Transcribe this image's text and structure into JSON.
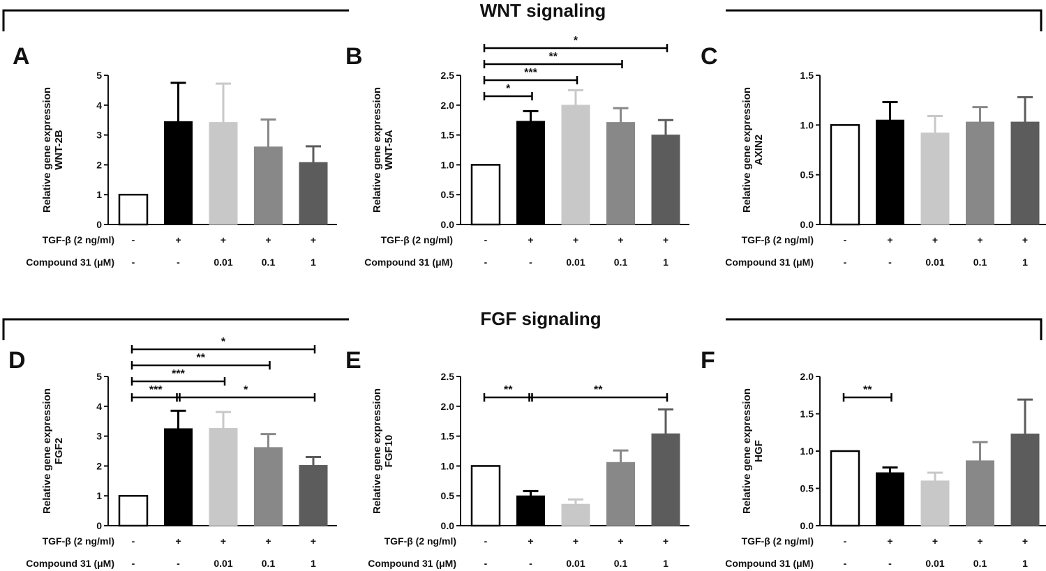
{
  "sections": [
    {
      "title": "WNT signaling"
    },
    {
      "title": "FGF signaling"
    }
  ],
  "row_labels": {
    "tgf": "TGF-β (2 ng/ml)",
    "compound": "Compound 31 (μM)"
  },
  "colors": {
    "bars": [
      "#ffffff",
      "#000000",
      "#c8c8c8",
      "#888888",
      "#5c5c5c"
    ],
    "axis": "#111111"
  },
  "chart_data": [
    {
      "panel": "A",
      "type": "bar",
      "ylabel_line1": "Relative gene expression",
      "ylabel_line2": "WNT-2B",
      "categories": [
        "-/-",
        "+/-",
        "+/0.01",
        "+/0.1",
        "+/1"
      ],
      "tgf": [
        "-",
        "+",
        "+",
        "+",
        "+"
      ],
      "compound": [
        "-",
        "-",
        "0.01",
        "0.1",
        "1"
      ],
      "values": [
        1.0,
        3.45,
        3.42,
        2.6,
        2.08
      ],
      "errors": [
        0,
        1.3,
        1.3,
        0.92,
        0.54
      ],
      "ylim": [
        0,
        5
      ],
      "yticks": [
        "0",
        "1",
        "2",
        "3",
        "4",
        "5"
      ],
      "yticks_values": [
        0,
        1,
        2,
        3,
        4,
        5
      ],
      "significance": []
    },
    {
      "panel": "B",
      "type": "bar",
      "ylabel_line1": "Relative gene expression",
      "ylabel_line2": "WNT-5A",
      "categories": [
        "-/-",
        "+/-",
        "+/0.01",
        "+/0.1",
        "+/1"
      ],
      "tgf": [
        "-",
        "+",
        "+",
        "+",
        "+"
      ],
      "compound": [
        "-",
        "-",
        "0.01",
        "0.1",
        "1"
      ],
      "values": [
        1.0,
        1.73,
        2.0,
        1.71,
        1.5
      ],
      "errors": [
        0,
        0.17,
        0.25,
        0.24,
        0.25
      ],
      "ylim": [
        0,
        2.5
      ],
      "yticks": [
        "0.0",
        "0.5",
        "1.0",
        "1.5",
        "2.0",
        "2.5"
      ],
      "yticks_values": [
        0,
        0.5,
        1.0,
        1.5,
        2.0,
        2.5
      ],
      "significance": [
        {
          "from": 0,
          "to": 1,
          "label": "*",
          "level": 0
        },
        {
          "from": 0,
          "to": 2,
          "label": "***",
          "level": 1
        },
        {
          "from": 0,
          "to": 3,
          "label": "**",
          "level": 2
        },
        {
          "from": 0,
          "to": 4,
          "label": "*",
          "level": 3
        }
      ]
    },
    {
      "panel": "C",
      "type": "bar",
      "ylabel_line1": "Relative gene expression",
      "ylabel_line2": "AXIN2",
      "categories": [
        "-/-",
        "+/-",
        "+/0.01",
        "+/0.1",
        "+/1"
      ],
      "tgf": [
        "-",
        "+",
        "+",
        "+",
        "+"
      ],
      "compound": [
        "-",
        "-",
        "0.01",
        "0.1",
        "1"
      ],
      "values": [
        1.0,
        1.05,
        0.92,
        1.03,
        1.03
      ],
      "errors": [
        0,
        0.18,
        0.17,
        0.15,
        0.25
      ],
      "ylim": [
        0,
        1.5
      ],
      "yticks": [
        "0.0",
        "0.5",
        "1.0",
        "1.5"
      ],
      "yticks_values": [
        0,
        0.5,
        1.0,
        1.5
      ],
      "significance": []
    },
    {
      "panel": "D",
      "type": "bar",
      "ylabel_line1": "Relative gene expression",
      "ylabel_line2": "FGF2",
      "categories": [
        "-/-",
        "+/-",
        "+/0.01",
        "+/0.1",
        "+/1"
      ],
      "tgf": [
        "-",
        "+",
        "+",
        "+",
        "+"
      ],
      "compound": [
        "-",
        "-",
        "0.01",
        "0.1",
        "1"
      ],
      "values": [
        1.0,
        3.25,
        3.26,
        2.62,
        2.02
      ],
      "errors": [
        0,
        0.6,
        0.55,
        0.45,
        0.28
      ],
      "ylim": [
        0,
        5
      ],
      "yticks": [
        "0",
        "1",
        "2",
        "3",
        "4",
        "5"
      ],
      "yticks_values": [
        0,
        1,
        2,
        3,
        4,
        5
      ],
      "significance": [
        {
          "from": 0,
          "to": 1,
          "label": "***",
          "level": 0
        },
        {
          "from": 1,
          "to": 4,
          "label": "*",
          "level": 0
        },
        {
          "from": 0,
          "to": 2,
          "label": "***",
          "level": 1
        },
        {
          "from": 0,
          "to": 3,
          "label": "**",
          "level": 2
        },
        {
          "from": 0,
          "to": 4,
          "label": "*",
          "level": 3
        }
      ]
    },
    {
      "panel": "E",
      "type": "bar",
      "ylabel_line1": "Relative gene expression",
      "ylabel_line2": "FGF10",
      "categories": [
        "-/-",
        "+/-",
        "+/0.01",
        "+/0.1",
        "+/1"
      ],
      "tgf": [
        "-",
        "+",
        "+",
        "+",
        "+"
      ],
      "compound": [
        "-",
        "-",
        "0.01",
        "0.1",
        "1"
      ],
      "values": [
        1.0,
        0.5,
        0.36,
        1.06,
        1.54
      ],
      "errors": [
        0,
        0.08,
        0.08,
        0.2,
        0.41
      ],
      "ylim": [
        0,
        2.5
      ],
      "yticks": [
        "0.0",
        "0.5",
        "1.0",
        "1.5",
        "2.0",
        "2.5"
      ],
      "yticks_values": [
        0,
        0.5,
        1.0,
        1.5,
        2.0,
        2.5
      ],
      "significance": [
        {
          "from": 0,
          "to": 1,
          "label": "**",
          "level": 0
        },
        {
          "from": 1,
          "to": 4,
          "label": "**",
          "level": 0
        }
      ]
    },
    {
      "panel": "F",
      "type": "bar",
      "ylabel_line1": "Relative gene expression",
      "ylabel_line2": "HGF",
      "categories": [
        "-/-",
        "+/-",
        "+/0.01",
        "+/0.1",
        "+/1"
      ],
      "tgf": [
        "-",
        "+",
        "+",
        "+",
        "+"
      ],
      "compound": [
        "-",
        "-",
        "0.01",
        "0.1",
        "1"
      ],
      "values": [
        1.0,
        0.71,
        0.6,
        0.87,
        1.23
      ],
      "errors": [
        0,
        0.07,
        0.11,
        0.25,
        0.46
      ],
      "ylim": [
        0,
        2.0
      ],
      "yticks": [
        "0.0",
        "0.5",
        "1.0",
        "1.5",
        "2.0"
      ],
      "yticks_values": [
        0,
        0.5,
        1.0,
        1.5,
        2.0
      ],
      "significance": [
        {
          "from": 0,
          "to": 1,
          "label": "**",
          "level": 0
        }
      ]
    }
  ]
}
